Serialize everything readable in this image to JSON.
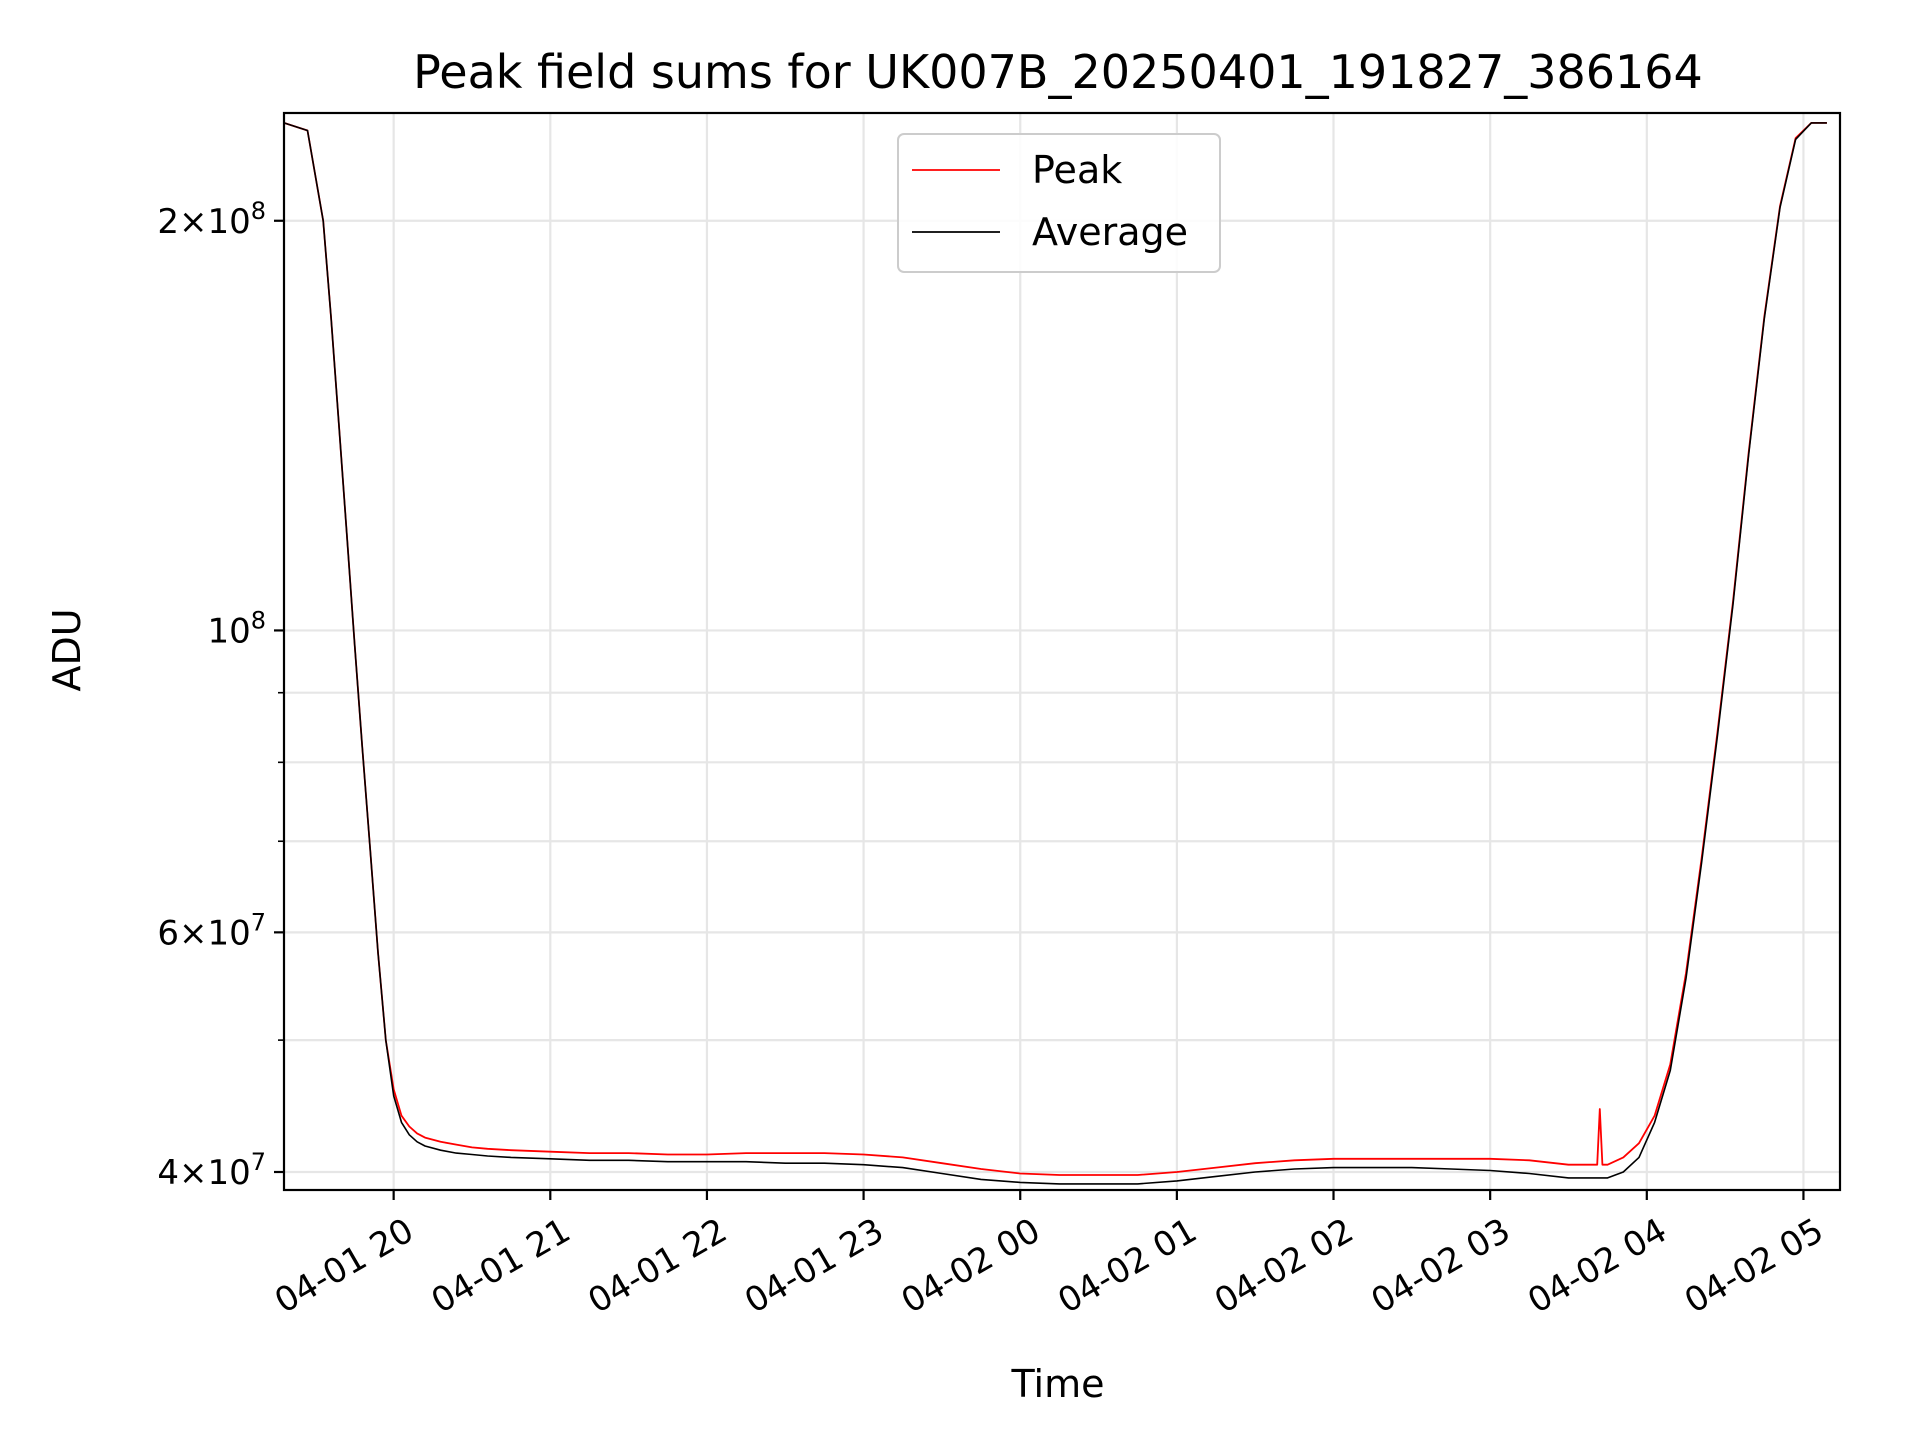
{
  "chart_data": {
    "type": "line",
    "title": "Peak field sums for UK007B_20250401_191827_386164",
    "xlabel": "Time",
    "ylabel": "ADU",
    "y_scale": "log",
    "ylim": [
      38800000,
      240000000
    ],
    "xlim": [
      "2025-04-01 19:18",
      "2025-04-02 05:14"
    ],
    "grid": true,
    "legend_position": "top-center",
    "x_ticks": [
      {
        "label": "04-01 20",
        "value": "2025-04-01 20:00"
      },
      {
        "label": "04-01 21",
        "value": "2025-04-01 21:00"
      },
      {
        "label": "04-01 22",
        "value": "2025-04-01 22:00"
      },
      {
        "label": "04-01 23",
        "value": "2025-04-01 23:00"
      },
      {
        "label": "04-02 00",
        "value": "2025-04-02 00:00"
      },
      {
        "label": "04-02 01",
        "value": "2025-04-02 01:00"
      },
      {
        "label": "04-02 02",
        "value": "2025-04-02 02:00"
      },
      {
        "label": "04-02 03",
        "value": "2025-04-02 03:00"
      },
      {
        "label": "04-02 04",
        "value": "2025-04-02 04:00"
      },
      {
        "label": "04-02 05",
        "value": "2025-04-02 05:00"
      }
    ],
    "y_major_ticks": [
      {
        "base": "4",
        "exp": "7",
        "value": 40000000
      },
      {
        "base": "6",
        "exp": "7",
        "value": 60000000
      },
      {
        "base": "",
        "exp": "8",
        "value": 100000000
      },
      {
        "base": "2",
        "exp": "8",
        "value": 200000000
      }
    ],
    "y_minor_ticks": [
      50000000,
      70000000,
      80000000,
      90000000
    ],
    "series": [
      {
        "name": "Peak",
        "color": "#ff0000",
        "x": [
          "2025-04-01 19:18",
          "2025-04-01 19:27",
          "2025-04-01 19:33",
          "2025-04-01 19:36",
          "2025-04-01 19:39",
          "2025-04-01 19:42",
          "2025-04-01 19:45",
          "2025-04-01 19:48",
          "2025-04-01 19:51",
          "2025-04-01 19:54",
          "2025-04-01 19:57",
          "2025-04-01 20:00",
          "2025-04-01 20:03",
          "2025-04-01 20:06",
          "2025-04-01 20:09",
          "2025-04-01 20:12",
          "2025-04-01 20:18",
          "2025-04-01 20:24",
          "2025-04-01 20:30",
          "2025-04-01 20:36",
          "2025-04-01 20:45",
          "2025-04-01 21:00",
          "2025-04-01 21:15",
          "2025-04-01 21:30",
          "2025-04-01 21:45",
          "2025-04-01 22:00",
          "2025-04-01 22:15",
          "2025-04-01 22:30",
          "2025-04-01 22:45",
          "2025-04-01 23:00",
          "2025-04-01 23:15",
          "2025-04-01 23:30",
          "2025-04-01 23:45",
          "2025-04-02 00:00",
          "2025-04-02 00:15",
          "2025-04-02 00:30",
          "2025-04-02 00:45",
          "2025-04-02 01:00",
          "2025-04-02 01:15",
          "2025-04-02 01:30",
          "2025-04-02 01:45",
          "2025-04-02 02:00",
          "2025-04-02 02:15",
          "2025-04-02 02:30",
          "2025-04-02 02:45",
          "2025-04-02 03:00",
          "2025-04-02 03:15",
          "2025-04-02 03:30",
          "2025-04-02 03:41",
          "2025-04-02 03:42",
          "2025-04-02 03:43",
          "2025-04-02 03:45",
          "2025-04-02 03:51",
          "2025-04-02 03:57",
          "2025-04-02 04:03",
          "2025-04-02 04:09",
          "2025-04-02 04:15",
          "2025-04-02 04:21",
          "2025-04-02 04:27",
          "2025-04-02 04:33",
          "2025-04-02 04:39",
          "2025-04-02 04:45",
          "2025-04-02 04:51",
          "2025-04-02 04:57",
          "2025-04-02 05:03",
          "2025-04-02 05:09"
        ],
        "y": [
          236000000,
          233000000,
          200000000,
          170000000,
          142000000,
          118000000,
          98000000,
          82000000,
          69000000,
          58000000,
          50000000,
          46000000,
          44000000,
          43200000,
          42700000,
          42400000,
          42100000,
          41900000,
          41700000,
          41600000,
          41500000,
          41400000,
          41300000,
          41300000,
          41200000,
          41200000,
          41300000,
          41300000,
          41300000,
          41200000,
          41000000,
          40600000,
          40200000,
          39900000,
          39800000,
          39800000,
          39800000,
          40000000,
          40300000,
          40600000,
          40800000,
          40900000,
          40900000,
          40900000,
          40900000,
          40900000,
          40800000,
          40500000,
          40500000,
          44500000,
          40500000,
          40500000,
          41000000,
          42000000,
          44000000,
          48000000,
          56000000,
          68000000,
          84000000,
          105000000,
          135000000,
          170000000,
          205000000,
          230000000,
          236000000,
          236000000
        ]
      },
      {
        "name": "Average",
        "color": "#000000",
        "x": [
          "2025-04-01 19:18",
          "2025-04-01 19:27",
          "2025-04-01 19:33",
          "2025-04-01 19:36",
          "2025-04-01 19:39",
          "2025-04-01 19:42",
          "2025-04-01 19:45",
          "2025-04-01 19:48",
          "2025-04-01 19:51",
          "2025-04-01 19:54",
          "2025-04-01 19:57",
          "2025-04-01 20:00",
          "2025-04-01 20:03",
          "2025-04-01 20:06",
          "2025-04-01 20:09",
          "2025-04-01 20:12",
          "2025-04-01 20:18",
          "2025-04-01 20:24",
          "2025-04-01 20:30",
          "2025-04-01 20:36",
          "2025-04-01 20:45",
          "2025-04-01 21:00",
          "2025-04-01 21:15",
          "2025-04-01 21:30",
          "2025-04-01 21:45",
          "2025-04-01 22:00",
          "2025-04-01 22:15",
          "2025-04-01 22:30",
          "2025-04-01 22:45",
          "2025-04-01 23:00",
          "2025-04-01 23:15",
          "2025-04-01 23:30",
          "2025-04-01 23:45",
          "2025-04-02 00:00",
          "2025-04-02 00:15",
          "2025-04-02 00:30",
          "2025-04-02 00:45",
          "2025-04-02 01:00",
          "2025-04-02 01:15",
          "2025-04-02 01:30",
          "2025-04-02 01:45",
          "2025-04-02 02:00",
          "2025-04-02 02:15",
          "2025-04-02 02:30",
          "2025-04-02 02:45",
          "2025-04-02 03:00",
          "2025-04-02 03:15",
          "2025-04-02 03:30",
          "2025-04-02 03:45",
          "2025-04-02 03:51",
          "2025-04-02 03:57",
          "2025-04-02 04:03",
          "2025-04-02 04:09",
          "2025-04-02 04:15",
          "2025-04-02 04:21",
          "2025-04-02 04:27",
          "2025-04-02 04:33",
          "2025-04-02 04:39",
          "2025-04-02 04:45",
          "2025-04-02 04:51",
          "2025-04-02 04:57",
          "2025-04-02 05:03",
          "2025-04-02 05:09"
        ],
        "y": [
          236000000,
          233000000,
          200000000,
          170000000,
          142000000,
          118000000,
          98000000,
          82000000,
          69000000,
          58000000,
          50000000,
          45500000,
          43500000,
          42600000,
          42100000,
          41800000,
          41500000,
          41300000,
          41200000,
          41100000,
          41000000,
          40900000,
          40800000,
          40800000,
          40700000,
          40700000,
          40700000,
          40600000,
          40600000,
          40500000,
          40300000,
          39900000,
          39500000,
          39300000,
          39200000,
          39200000,
          39200000,
          39400000,
          39700000,
          40000000,
          40200000,
          40300000,
          40300000,
          40300000,
          40200000,
          40100000,
          39900000,
          39600000,
          39600000,
          40000000,
          41000000,
          43500000,
          47500000,
          55500000,
          67500000,
          83500000,
          104500000,
          134500000,
          169500000,
          204500000,
          229500000,
          236000000,
          236000000
        ]
      }
    ]
  }
}
